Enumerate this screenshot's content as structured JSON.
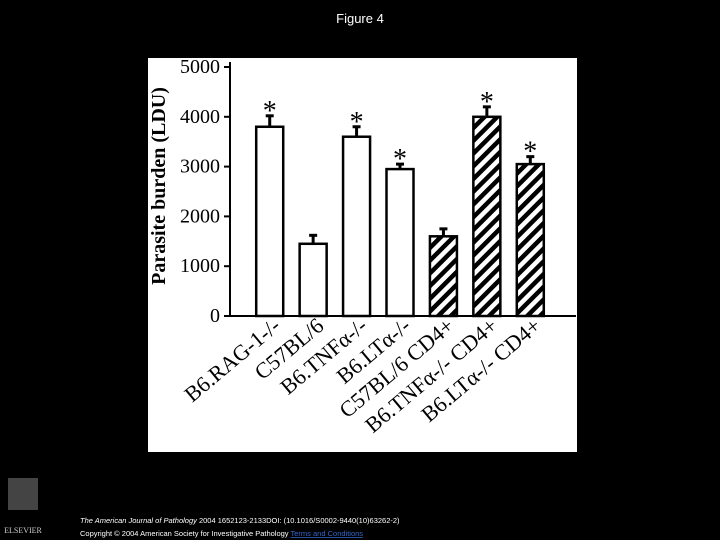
{
  "title": "Figure 4",
  "chart_data": {
    "type": "bar",
    "y_label": "Parasite burden (LDU)",
    "categories": [
      "B6.RAG-1-/-",
      "C57BL/6",
      "B6.TNFα-/-",
      "B6.LTα-/-",
      "C57BL/6 CD4+",
      "B6.TNFα-/- CD4+",
      "B6.LTα-/- CD4+"
    ],
    "values": [
      3800,
      1450,
      3600,
      2950,
      1600,
      4000,
      3050
    ],
    "errors": [
      220,
      170,
      200,
      100,
      150,
      200,
      150
    ],
    "significance": [
      "*",
      null,
      "*",
      "*",
      null,
      "*",
      "*"
    ],
    "hatch": [
      false,
      false,
      false,
      false,
      true,
      true,
      true
    ],
    "color": "#000000",
    "ylim": [
      0,
      5000
    ],
    "yticks": [
      0,
      1000,
      2000,
      3000,
      4000,
      5000
    ]
  },
  "footer": {
    "journal": "The American Journal of Pathology",
    "citation": "2004 1652123-2133DOI: (10.1016/S0002-9440(10)63262-2)",
    "copyright": "Copyright © 2004 American Society for Investigative Pathology",
    "link": "Terms and Conditions",
    "logo": "ELSEVIER"
  }
}
